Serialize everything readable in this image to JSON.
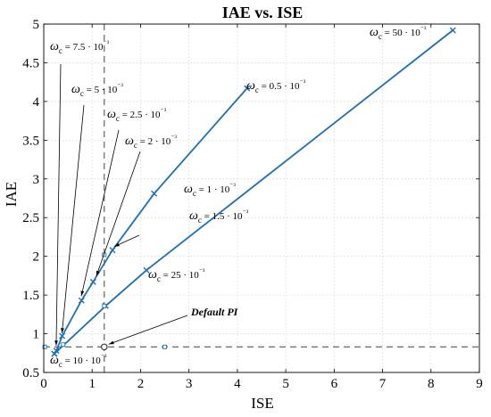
{
  "chart_data": {
    "type": "line",
    "title": "IAE vs. ISE",
    "xlabel": "ISE",
    "ylabel": "IAE",
    "xlim": [
      0,
      9
    ],
    "ylim": [
      0.5,
      5
    ],
    "xticks": [
      "0",
      "1",
      "2",
      "3",
      "4",
      "5",
      "6",
      "7",
      "8",
      "9"
    ],
    "yticks": [
      "0.5",
      "1",
      "1.5",
      "2",
      "2.5",
      "3",
      "3.5",
      "4",
      "4.5",
      "5"
    ],
    "grid": true,
    "series": [
      {
        "points": [
          [
            0.22,
            0.74
          ],
          [
            0.26,
            0.78
          ],
          [
            0.38,
            0.97
          ],
          [
            0.78,
            1.43
          ],
          [
            1.02,
            1.67
          ],
          [
            1.42,
            2.08
          ],
          [
            2.28,
            2.81
          ],
          [
            4.2,
            4.17
          ]
        ]
      },
      {
        "points": [
          [
            0.22,
            0.74
          ],
          [
            1.28,
            1.36
          ],
          [
            2.12,
            1.82
          ],
          [
            8.45,
            4.92
          ]
        ]
      }
    ],
    "crosshair": {
      "x": 1.25,
      "y": 0.83
    },
    "default_pi": {
      "x": 1.25,
      "y": 0.83,
      "label": "Default PI"
    },
    "secondary_markers": [
      [
        0.02,
        0.83
      ],
      [
        2.5,
        0.83
      ],
      [
        1.25,
        2.02
      ],
      [
        1.25,
        1.36
      ],
      [
        0.4,
        0.86
      ]
    ],
    "annotations": [
      {
        "text": "ωc = 50 · 10⁻³",
        "at": [
          8.45,
          4.92
        ]
      },
      {
        "text": "ωc = 0.5 · 10⁻³",
        "at": [
          4.2,
          4.17
        ]
      },
      {
        "text": "ωc = 1 · 10⁻³",
        "at": [
          2.28,
          2.81
        ]
      },
      {
        "text": "ωc = 1.5 · 10⁻³",
        "at": [
          1.42,
          2.08
        ]
      },
      {
        "text": "ωc = 25 · 10⁻³",
        "at": [
          2.12,
          1.82
        ]
      },
      {
        "text": "ωc = 10 · 10⁻³",
        "at": [
          0.22,
          0.74
        ]
      },
      {
        "text": "ωc = 7.5 · 10⁻³",
        "at": [
          0.22,
          0.8
        ]
      },
      {
        "text": "ωc = 5 · 10⁻³",
        "at": [
          0.34,
          0.96
        ]
      },
      {
        "text": "ωc = 2.5 · 10⁻³",
        "at": [
          0.74,
          1.44
        ]
      },
      {
        "text": "ωc = 2 · 10⁻³",
        "at": [
          1.05,
          1.7
        ]
      }
    ],
    "colors": {
      "line": "#1f6fb2",
      "crosshair": "#555555",
      "grid": "#d9d9d9",
      "arrow": "#000000"
    }
  }
}
